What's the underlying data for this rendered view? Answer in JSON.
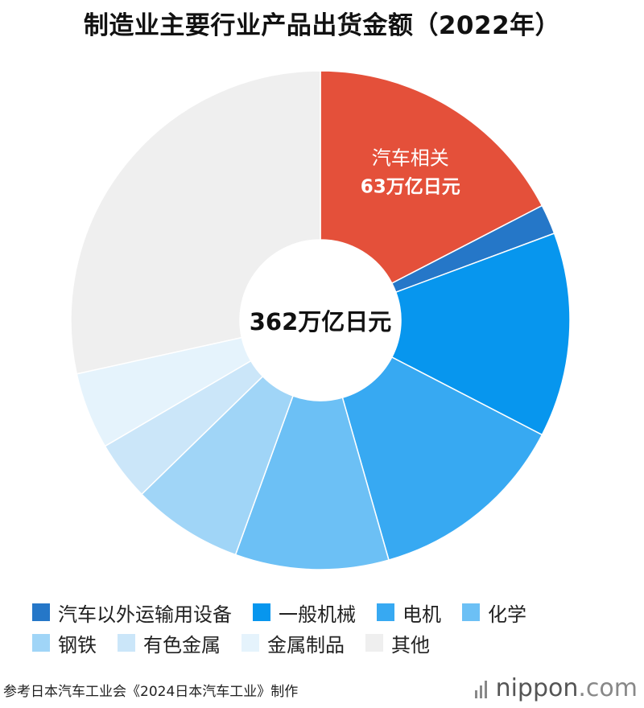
{
  "chart_data": {
    "type": "pie",
    "title": "制造业主要行业产品出货金额（2022年）",
    "center_label": "362万亿日元",
    "total": 362,
    "categories": [
      "汽车相关",
      "汽车以外运输用设备",
      "一般机械",
      "电机",
      "化学",
      "钢铁",
      "有色金属",
      "金属制品",
      "其他"
    ],
    "values": [
      63,
      7,
      48,
      47,
      36,
      26,
      14,
      18,
      103
    ],
    "colors": [
      "#e4503a",
      "#2577c8",
      "#0796ee",
      "#37a9f2",
      "#6cc0f5",
      "#a0d5f7",
      "#cbe6f9",
      "#e5f3fc",
      "#efefef"
    ],
    "slice_label": {
      "name": "汽车相关",
      "value_text": "63万亿日元"
    },
    "legend_placement": "bottom"
  },
  "legend": {
    "rows": [
      [
        {
          "label": "汽车以外运输用设备",
          "color": "#2577c8"
        },
        {
          "label": "一般机械",
          "color": "#0796ee"
        },
        {
          "label": "电机",
          "color": "#37a9f2"
        },
        {
          "label": "化学",
          "color": "#6cc0f5"
        }
      ],
      [
        {
          "label": "钢铁",
          "color": "#a0d5f7"
        },
        {
          "label": "有色金属",
          "color": "#cbe6f9"
        },
        {
          "label": "金属制品",
          "color": "#e5f3fc"
        },
        {
          "label": "其他",
          "color": "#efefef"
        }
      ]
    ]
  },
  "footer": {
    "source": "参考日本汽车工业会《2024日本汽车工业》制作",
    "brand_name": "nippon",
    "brand_tld": ".com"
  }
}
